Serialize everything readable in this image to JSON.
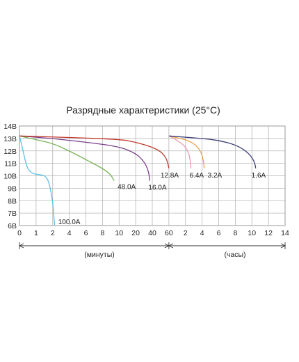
{
  "chart_data": {
    "type": "line",
    "title": "Разрядные характеристики (25°C)",
    "y_ticks": [
      "14В",
      "13В",
      "12В",
      "11В",
      "10В",
      "9В",
      "8В",
      "7В",
      "6В"
    ],
    "ylim": [
      6,
      14
    ],
    "minutes_ticks": [
      "0",
      "1",
      "2",
      "4",
      "6",
      "8",
      "10",
      "20",
      "40",
      "60"
    ],
    "hours_ticks": [
      "2",
      "4",
      "6",
      "8",
      "10",
      "12",
      "14"
    ],
    "minutes_label": "(минуты)",
    "hours_label": "(часы)",
    "colors": {
      "100.0A": "#5bc0e8",
      "48.0A": "#77b255",
      "16.0A": "#7a3e8a",
      "12.8A": "#c0392b",
      "6.4A": "#e89bb0",
      "3.2A": "#e8a04a",
      "1.6A": "#3d3f78"
    },
    "series": [
      {
        "name": "100.0A",
        "label": "100.0A",
        "unit": "min",
        "points": [
          [
            0,
            13.2
          ],
          [
            0.2,
            12.1
          ],
          [
            0.45,
            10.6
          ],
          [
            0.8,
            10.15
          ],
          [
            1.2,
            10.1
          ],
          [
            1.55,
            10.0
          ],
          [
            1.75,
            9.6
          ],
          [
            1.95,
            8.4
          ],
          [
            2.1,
            7.2
          ],
          [
            2.2,
            6.3
          ],
          [
            2.25,
            6.0
          ]
        ]
      },
      {
        "name": "48.0A",
        "label": "48.0A",
        "unit": "min",
        "points": [
          [
            0,
            13.2
          ],
          [
            1,
            12.9
          ],
          [
            2,
            12.6
          ],
          [
            4,
            12.0
          ],
          [
            6,
            11.3
          ],
          [
            8,
            10.6
          ],
          [
            9,
            10.1
          ],
          [
            9.4,
            9.6
          ]
        ]
      },
      {
        "name": "16.0A",
        "label": "16.0A",
        "unit": "min",
        "points": [
          [
            0,
            13.2
          ],
          [
            2,
            13.0
          ],
          [
            6,
            12.7
          ],
          [
            10,
            12.35
          ],
          [
            20,
            11.8
          ],
          [
            28,
            11.3
          ],
          [
            33,
            10.8
          ],
          [
            36,
            10.2
          ],
          [
            37,
            9.6
          ]
        ]
      },
      {
        "name": "12.8A",
        "label": "12.8A",
        "unit": "min",
        "points": [
          [
            0,
            13.2
          ],
          [
            10,
            12.95
          ],
          [
            20,
            12.7
          ],
          [
            40,
            12.3
          ],
          [
            50,
            11.95
          ],
          [
            55,
            11.6
          ],
          [
            58,
            11.2
          ],
          [
            60,
            10.6
          ]
        ]
      },
      {
        "name": "6.4A",
        "label": "6.4A",
        "unit": "hr",
        "points": [
          [
            0,
            13.2
          ],
          [
            0.6,
            13.0
          ],
          [
            1.2,
            12.75
          ],
          [
            1.8,
            12.45
          ],
          [
            2.2,
            12.1
          ],
          [
            2.5,
            11.6
          ],
          [
            2.6,
            11.0
          ],
          [
            2.65,
            10.6
          ]
        ]
      },
      {
        "name": "3.2A",
        "label": "3.2A",
        "unit": "hr",
        "points": [
          [
            0,
            13.2
          ],
          [
            1,
            13.05
          ],
          [
            2,
            12.9
          ],
          [
            3,
            12.6
          ],
          [
            3.6,
            12.2
          ],
          [
            4,
            11.7
          ],
          [
            4.2,
            11.0
          ],
          [
            4.25,
            10.6
          ]
        ]
      },
      {
        "name": "1.6A",
        "label": "1.6A",
        "unit": "hr",
        "points": [
          [
            0,
            13.2
          ],
          [
            2,
            13.1
          ],
          [
            4,
            13.0
          ],
          [
            6,
            12.85
          ],
          [
            8,
            12.5
          ],
          [
            9.3,
            12.0
          ],
          [
            10.1,
            11.4
          ],
          [
            10.4,
            10.9
          ],
          [
            10.45,
            10.6
          ]
        ]
      }
    ],
    "grid": true
  }
}
